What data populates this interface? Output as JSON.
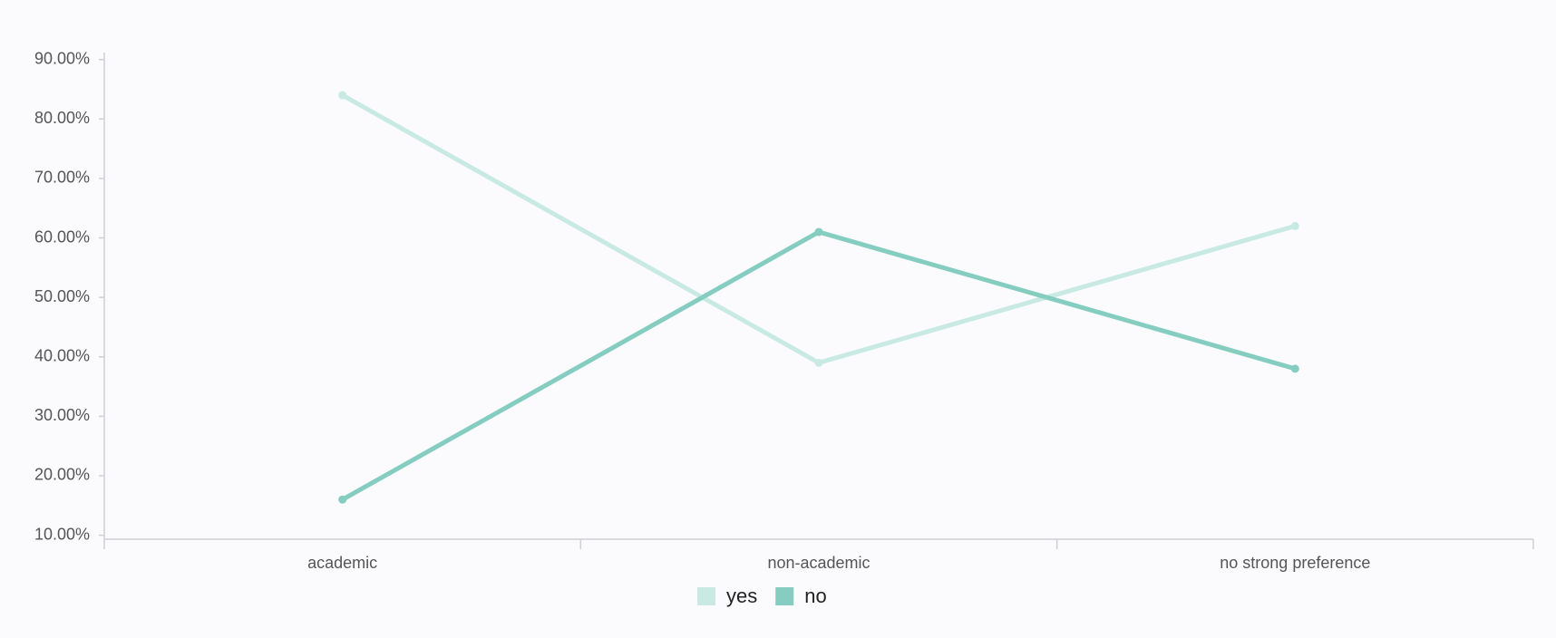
{
  "chart_data": {
    "type": "line",
    "categories": [
      "academic",
      "non-academic",
      "no strong preference"
    ],
    "series": [
      {
        "name": "yes",
        "color": "#c8eae3",
        "values": [
          84,
          39,
          62
        ]
      },
      {
        "name": "no",
        "color": "#84cdc0",
        "values": [
          16,
          61,
          38
        ]
      }
    ],
    "ylim": [
      9.33,
      91.17
    ],
    "yticks": [
      {
        "value": 10,
        "label": "10.00%"
      },
      {
        "value": 20,
        "label": "20.00%"
      },
      {
        "value": 30,
        "label": "30.00%"
      },
      {
        "value": 40,
        "label": "40.00%"
      },
      {
        "value": 50,
        "label": "50.00%"
      },
      {
        "value": 60,
        "label": "60.00%"
      },
      {
        "value": 70,
        "label": "70.00%"
      },
      {
        "value": 80,
        "label": "80.00%"
      },
      {
        "value": 90,
        "label": "90.00%"
      }
    ],
    "grid": false,
    "legend": "bottom"
  }
}
